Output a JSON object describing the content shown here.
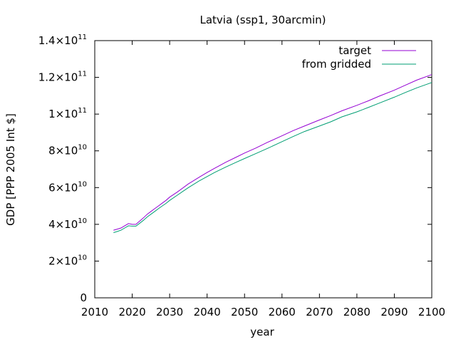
{
  "chart_data": {
    "type": "line",
    "title": "Latvia (ssp1, 30arcmin)",
    "xlabel": "year",
    "ylabel": "GDP [PPP 2005 Int $]",
    "xlim": [
      2010,
      2100
    ],
    "ylim": [
      0,
      140000000000
    ],
    "x_ticks": [
      2010,
      2020,
      2030,
      2040,
      2050,
      2060,
      2070,
      2080,
      2090,
      2100
    ],
    "x_tick_labels": [
      "2010",
      "2020",
      "2030",
      "2040",
      "2050",
      "2060",
      "2070",
      "2080",
      "2090",
      "2100"
    ],
    "y_ticks": [
      {
        "value": 0,
        "mantissa": "0",
        "exponent": ""
      },
      {
        "value": 20000000000,
        "mantissa": "2×10",
        "exponent": "10"
      },
      {
        "value": 40000000000,
        "mantissa": "4×10",
        "exponent": "10"
      },
      {
        "value": 60000000000,
        "mantissa": "6×10",
        "exponent": "10"
      },
      {
        "value": 80000000000,
        "mantissa": "8×10",
        "exponent": "10"
      },
      {
        "value": 100000000000,
        "mantissa": "1×10",
        "exponent": "11"
      },
      {
        "value": 120000000000,
        "mantissa": "1.2×10",
        "exponent": "11"
      },
      {
        "value": 140000000000,
        "mantissa": "1.4×10",
        "exponent": "11"
      }
    ],
    "grid": false,
    "legend_position": "top-right",
    "series": [
      {
        "name": "target",
        "color": "#9400d3",
        "x": [
          2015,
          2016,
          2017,
          2018,
          2019,
          2020,
          2021,
          2022,
          2023,
          2024,
          2025,
          2026,
          2027,
          2028,
          2029,
          2030,
          2032,
          2035,
          2038,
          2040,
          2042,
          2045,
          2048,
          2050,
          2053,
          2056,
          2060,
          2063,
          2066,
          2070,
          2073,
          2076,
          2080,
          2083,
          2086,
          2090,
          2093,
          2096,
          2100
        ],
        "values": [
          36800000000.0,
          37400000000.0,
          38000000000.0,
          39200000000.0,
          40400000000.0,
          40000000000.0,
          40000000000.0,
          41800000000.0,
          43500000000.0,
          45500000000.0,
          47000000000.0,
          48500000000.0,
          50000000000.0,
          51500000000.0,
          53000000000.0,
          54800000000.0,
          57500000000.0,
          62000000000.0,
          65800000000.0,
          68200000000.0,
          70500000000.0,
          73800000000.0,
          76800000000.0,
          78800000000.0,
          81500000000.0,
          84500000000.0,
          88200000000.0,
          91000000000.0,
          93500000000.0,
          96800000000.0,
          99200000000.0,
          101800000000.0,
          104800000000.0,
          107200000000.0,
          109800000000.0,
          113000000000.0,
          115800000000.0,
          118500000000.0,
          121500000000.0
        ]
      },
      {
        "name": "from gridded",
        "color": "#009e73",
        "x": [
          2015,
          2016,
          2017,
          2018,
          2019,
          2020,
          2021,
          2022,
          2023,
          2024,
          2025,
          2026,
          2027,
          2028,
          2029,
          2030,
          2032,
          2035,
          2038,
          2040,
          2042,
          2045,
          2048,
          2050,
          2053,
          2056,
          2060,
          2063,
          2066,
          2070,
          2073,
          2076,
          2080,
          2083,
          2086,
          2090,
          2093,
          2096,
          2100
        ],
        "values": [
          35500000000.0,
          36100000000.0,
          36800000000.0,
          38000000000.0,
          39200000000.0,
          39000000000.0,
          39000000000.0,
          40600000000.0,
          42200000000.0,
          44000000000.0,
          45500000000.0,
          47000000000.0,
          48500000000.0,
          50000000000.0,
          51400000000.0,
          53000000000.0,
          55800000000.0,
          60000000000.0,
          63800000000.0,
          66000000000.0,
          68200000000.0,
          71200000000.0,
          74000000000.0,
          75800000000.0,
          78500000000.0,
          81200000000.0,
          85000000000.0,
          87800000000.0,
          90500000000.0,
          93500000000.0,
          95800000000.0,
          98500000000.0,
          101200000000.0,
          103600000000.0,
          106000000000.0,
          109200000000.0,
          111800000000.0,
          114300000000.0,
          117200000000.0
        ]
      }
    ]
  }
}
